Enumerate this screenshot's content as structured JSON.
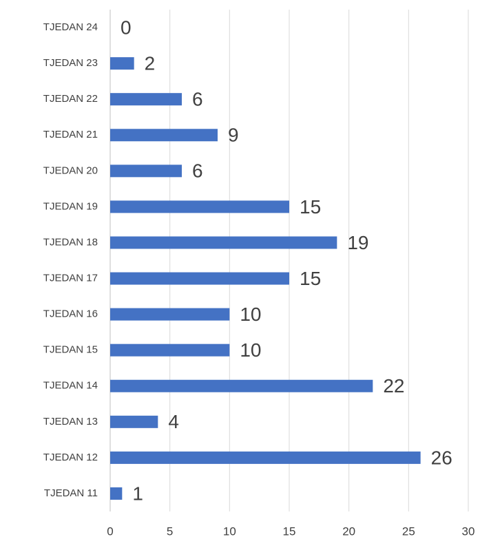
{
  "chart_data": {
    "type": "bar",
    "orientation": "horizontal",
    "categories": [
      "TJEDAN 24",
      "TJEDAN 23",
      "TJEDAN 22",
      "TJEDAN 21",
      "TJEDAN 20",
      "TJEDAN 19",
      "TJEDAN 18",
      "TJEDAN 17",
      "TJEDAN 16",
      "TJEDAN 15",
      "TJEDAN 14",
      "TJEDAN 13",
      "TJEDAN 12",
      "TJEDAN 11"
    ],
    "values": [
      0,
      2,
      6,
      9,
      6,
      15,
      19,
      15,
      10,
      10,
      22,
      4,
      26,
      1
    ],
    "color": "#4472c4",
    "xlim": [
      0,
      30
    ],
    "xticks": [
      0,
      5,
      10,
      15,
      20,
      25,
      30
    ],
    "grid": true
  }
}
